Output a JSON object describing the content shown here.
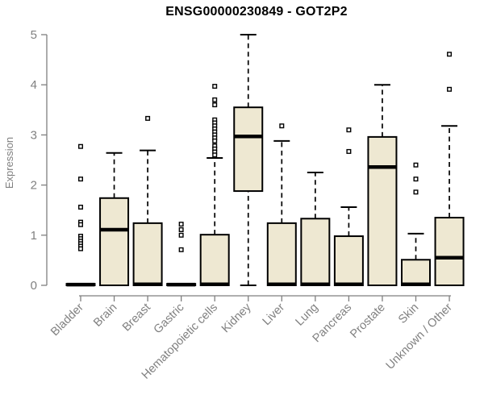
{
  "chart_data": {
    "type": "boxplot",
    "title": "ENSG00000230849 - GOT2P2",
    "ylabel": "Expression",
    "xlabel": "",
    "ylim": [
      0,
      5
    ],
    "yticks": [
      0,
      1,
      2,
      3,
      4,
      5
    ],
    "grid": false,
    "legend": "none",
    "colors": {
      "box_fill": "#EEE8D2",
      "box_border": "#000000",
      "median": "#000000",
      "whisker": "#000000",
      "axis": "#7f7f7f",
      "tick_label": "#808080",
      "title": "#000000",
      "background": "#ffffff"
    },
    "categories": [
      "Bladder",
      "Brain",
      "Breast",
      "Gastric",
      "Hematopoietic cells",
      "Kidney",
      "Liver",
      "Lung",
      "Pancreas",
      "Prostate",
      "Skin",
      "Unknown / Other"
    ],
    "series": [
      {
        "category": "Bladder",
        "whisker_low": 0,
        "q1": 0,
        "median": 0.015,
        "q3": 0.03,
        "whisker_high": 0.03,
        "outliers": [
          2.77,
          2.12,
          1.56,
          1.26,
          1.21,
          0.98,
          0.93,
          0.88,
          0.83,
          0.78,
          0.73
        ]
      },
      {
        "category": "Brain",
        "whisker_low": 0,
        "q1": 0,
        "median": 1.11,
        "q3": 1.74,
        "whisker_high": 2.64,
        "outliers": []
      },
      {
        "category": "Breast",
        "whisker_low": 0,
        "q1": 0,
        "median": 0.02,
        "q3": 1.24,
        "whisker_high": 2.69,
        "outliers": [
          3.33
        ]
      },
      {
        "category": "Gastric",
        "whisker_low": 0,
        "q1": 0,
        "median": 0.015,
        "q3": 0.03,
        "whisker_high": 0.03,
        "outliers": [
          1.22,
          1.11,
          1.0,
          0.71
        ]
      },
      {
        "category": "Hematopoietic cells",
        "whisker_low": 0,
        "q1": 0,
        "median": 0.02,
        "q3": 1.01,
        "whisker_high": 2.54,
        "outliers": [
          3.97,
          3.7,
          3.6,
          3.3,
          3.24,
          3.18,
          3.12,
          3.06,
          3.0,
          2.94,
          2.88,
          2.78,
          2.72,
          2.66,
          2.6
        ]
      },
      {
        "category": "Kidney",
        "whisker_low": 0,
        "q1": 1.88,
        "median": 2.97,
        "q3": 3.55,
        "whisker_high": 5.0,
        "outliers": []
      },
      {
        "category": "Liver",
        "whisker_low": 0,
        "q1": 0,
        "median": 0.02,
        "q3": 1.24,
        "whisker_high": 2.88,
        "outliers": [
          3.18
        ]
      },
      {
        "category": "Lung",
        "whisker_low": 0,
        "q1": 0,
        "median": 0.02,
        "q3": 1.33,
        "whisker_high": 2.25,
        "outliers": []
      },
      {
        "category": "Pancreas",
        "whisker_low": 0,
        "q1": 0,
        "median": 0.02,
        "q3": 0.98,
        "whisker_high": 1.56,
        "outliers": [
          3.1,
          2.67
        ]
      },
      {
        "category": "Prostate",
        "whisker_low": 0,
        "q1": 0,
        "median": 2.36,
        "q3": 2.96,
        "whisker_high": 4.0,
        "outliers": []
      },
      {
        "category": "Skin",
        "whisker_low": 0,
        "q1": 0,
        "median": 0.02,
        "q3": 0.51,
        "whisker_high": 1.03,
        "outliers": [
          2.4,
          2.12,
          1.86
        ]
      },
      {
        "category": "Unknown / Other",
        "whisker_low": 0,
        "q1": 0,
        "median": 0.55,
        "q3": 1.35,
        "whisker_high": 3.18,
        "outliers": [
          4.61,
          3.91
        ]
      }
    ]
  }
}
